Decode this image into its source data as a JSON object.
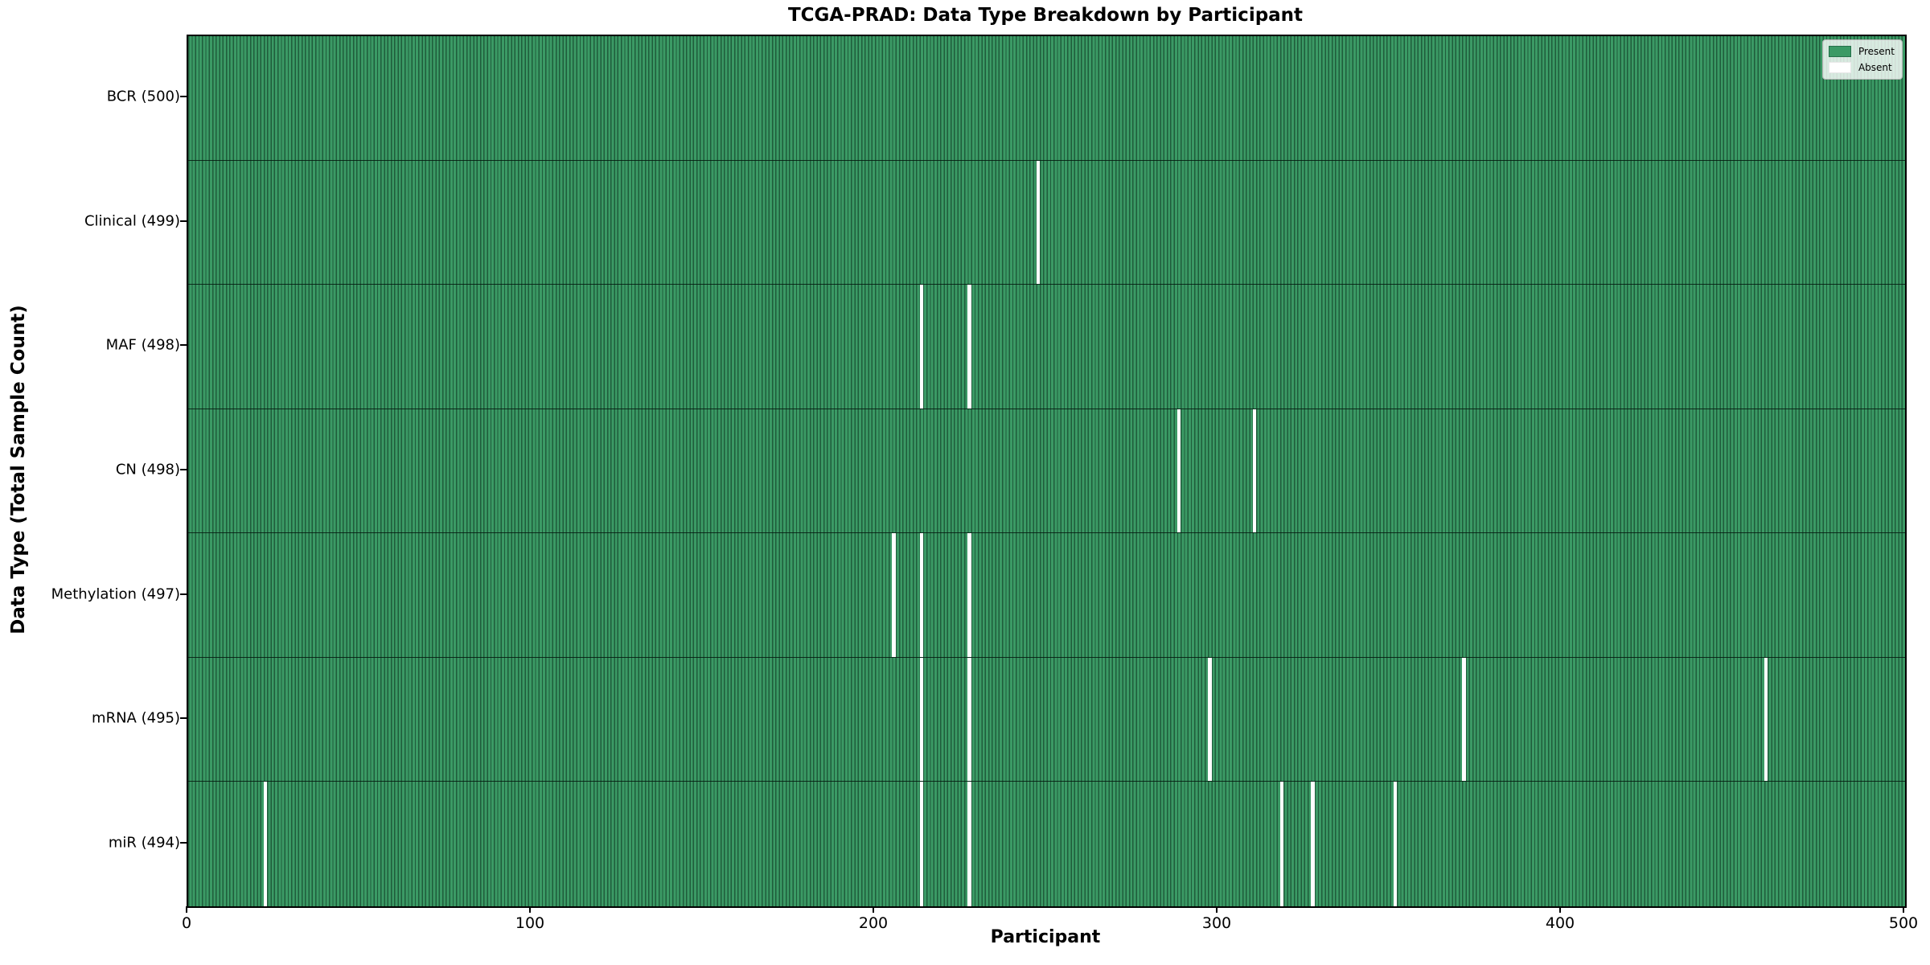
{
  "chart_data": {
    "type": "heatmap",
    "title": "TCGA-PRAD: Data Type Breakdown by Participant",
    "xlabel": "Participant",
    "ylabel": "Data Type (Total Sample Count)",
    "x_range": [
      0,
      500
    ],
    "n_participants": 500,
    "x_ticks": [
      {
        "value": 0,
        "label": "0"
      },
      {
        "value": 100,
        "label": "100"
      },
      {
        "value": 200,
        "label": "200"
      },
      {
        "value": 300,
        "label": "300"
      },
      {
        "value": 400,
        "label": "400"
      },
      {
        "value": 500,
        "label": "500"
      }
    ],
    "legend": {
      "position": "upper right",
      "entries": [
        {
          "label": "Present",
          "color": "#3b9a65"
        },
        {
          "label": "Absent",
          "color": "#ffffff"
        }
      ]
    },
    "grid": false,
    "rows": [
      {
        "label": "BCR (500)",
        "data_type": "BCR",
        "total": 500,
        "absent_participants": []
      },
      {
        "label": "Clinical (499)",
        "data_type": "Clinical",
        "total": 499,
        "absent_participants": [
          247
        ]
      },
      {
        "label": "MAF (498)",
        "data_type": "MAF",
        "total": 498,
        "absent_participants": [
          213,
          227
        ]
      },
      {
        "label": "CN (498)",
        "data_type": "CN",
        "total": 498,
        "absent_participants": [
          288,
          310
        ]
      },
      {
        "label": "Methylation (497)",
        "data_type": "Methylation",
        "total": 497,
        "absent_participants": [
          205,
          213,
          227
        ]
      },
      {
        "label": "mRNA (495)",
        "data_type": "mRNA",
        "total": 495,
        "absent_participants": [
          213,
          227,
          297,
          371,
          459
        ]
      },
      {
        "label": "miR (494)",
        "data_type": "miR",
        "total": 494,
        "absent_participants": [
          22,
          213,
          227,
          318,
          327,
          351
        ]
      }
    ],
    "colors": {
      "present_fill": "#3b9a65",
      "cell_edge_line": "#1f5c3b",
      "absent_fill": "#ffffff",
      "row_separator": "rgba(5,25,15,0.85)"
    }
  }
}
